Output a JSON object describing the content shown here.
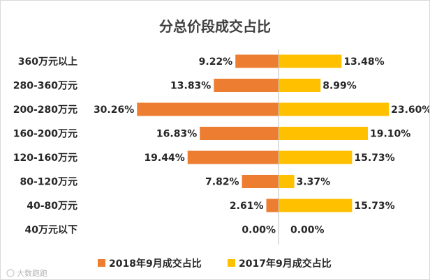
{
  "chart_data": {
    "type": "bar",
    "orientation": "horizontal-butterfly",
    "title": "分总价段成交占比",
    "categories": [
      "360万元以上",
      "280-360万元",
      "200-280万元",
      "160-200万元",
      "120-160万元",
      "80-120万元",
      "40-80万元",
      "40万元以下"
    ],
    "series": [
      {
        "name": "2018年9月成交占比",
        "color": "#ed7d31",
        "values": [
          9.22,
          13.83,
          30.26,
          16.83,
          19.44,
          7.82,
          2.61,
          0.0
        ],
        "labels": [
          "9.22%",
          "13.83%",
          "30.26%",
          "16.83%",
          "19.44%",
          "7.82%",
          "2.61%",
          "0.00%"
        ]
      },
      {
        "name": "2017年9月成交占比",
        "color": "#ffc000",
        "values": [
          13.48,
          8.99,
          23.6,
          19.1,
          15.73,
          3.37,
          15.73,
          0.0
        ],
        "labels": [
          "13.48%",
          "8.99%",
          "23.60%",
          "19.10%",
          "15.73%",
          "3.37%",
          "15.73%",
          "0.00%"
        ]
      }
    ],
    "legend": "bottom"
  },
  "watermark": "大数跑跑",
  "colors": {
    "axis": "#bfbfbf",
    "text": "#262626",
    "title": "#404040"
  }
}
